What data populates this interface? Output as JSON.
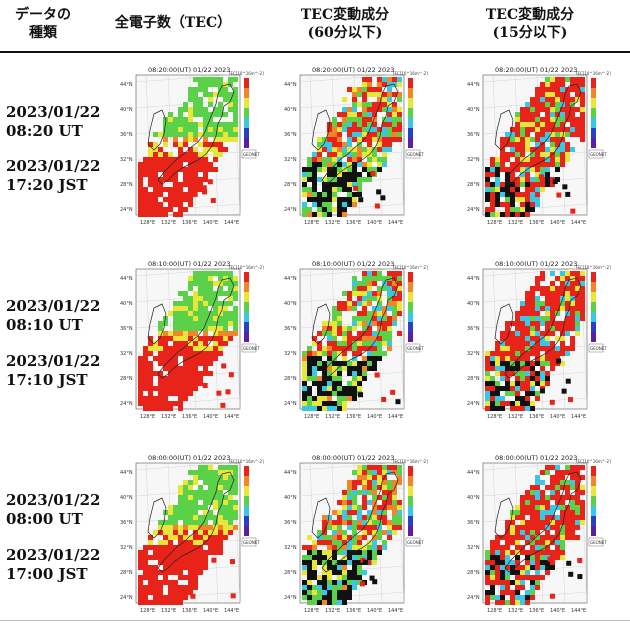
{
  "header": {
    "col0": "データの\n種類",
    "col1": "全電子数（TEC）",
    "col2": "TEC変動成分\n(60分以下)",
    "col3": "TEC変動成分\n(15分以下)"
  },
  "rows": [
    {
      "ut": "2023/01/22\n08:20 UT",
      "jst": "2023/01/22\n17:20 JST",
      "map_title": "08:20:00(UT) 01/22 2023"
    },
    {
      "ut": "2023/01/22\n08:10 UT",
      "jst": "2023/01/22\n17:10 JST",
      "map_title": "08:10:00(UT) 01/22 2023"
    },
    {
      "ut": "2023/01/22\n08:00 UT",
      "jst": "2023/01/22\n17:00 JST",
      "map_title": "08:00:00(UT) 01/22 2023"
    }
  ],
  "map": {
    "lat_ticks": [
      "44°N",
      "40°N",
      "36°N",
      "32°N",
      "28°N",
      "24°N"
    ],
    "lon_ticks": [
      "128°E",
      "132°E",
      "136°E",
      "140°E",
      "144°E"
    ],
    "cbar_unit": "TEC[10^16m^-2]",
    "logo": "GEONET",
    "red_fraction": {
      "tec": 0.45,
      "var60": 0.35,
      "var15": 0.7
    }
  },
  "colors": {
    "red": "#e8231a",
    "orange": "#f2852a",
    "yellow": "#e9e63a",
    "green": "#5bd14a",
    "cyan": "#39c7e3",
    "blue": "#2740c9",
    "black": "#111111"
  }
}
